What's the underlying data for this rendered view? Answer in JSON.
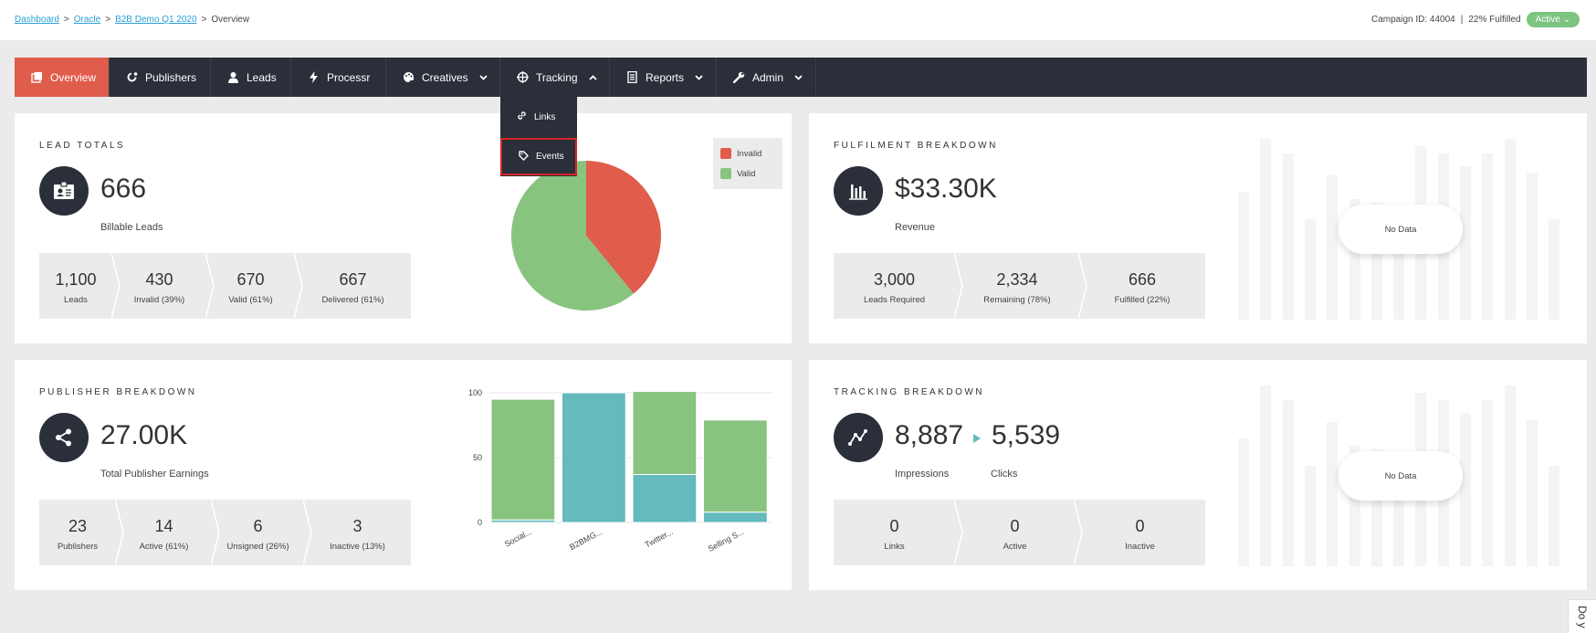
{
  "breadcrumb": {
    "items": [
      "Dashboard",
      "Oracle",
      "B2B Demo Q1 2020"
    ],
    "current": "Overview",
    "separator": ">"
  },
  "campaign": {
    "id_text": "Campaign ID: 44004",
    "divider": "|",
    "fulfilled_text": "22% Fulfilled",
    "status": "Active"
  },
  "nav": {
    "items": [
      {
        "label": "Overview",
        "icon": "overview-icon"
      },
      {
        "label": "Publishers",
        "icon": "publishers-icon"
      },
      {
        "label": "Leads",
        "icon": "person-icon"
      },
      {
        "label": "Processr",
        "icon": "bolt-icon"
      },
      {
        "label": "Creatives",
        "icon": "palette-icon"
      },
      {
        "label": "Tracking",
        "icon": "crosshair-icon"
      },
      {
        "label": "Reports",
        "icon": "document-icon"
      },
      {
        "label": "Admin",
        "icon": "wrench-icon"
      }
    ]
  },
  "tracking_dropdown": {
    "items": [
      {
        "label": "Links",
        "icon": "link-icon"
      },
      {
        "label": "Events",
        "icon": "tag-icon"
      }
    ]
  },
  "lead_totals": {
    "title": "LEAD TOTALS",
    "value": "666",
    "caption": "Billable Leads",
    "stats": [
      {
        "value": "1,100",
        "label": "Leads"
      },
      {
        "value": "430",
        "label": "Invalid (39%)"
      },
      {
        "value": "670",
        "label": "Valid (61%)"
      },
      {
        "value": "667",
        "label": "Delivered (61%)"
      }
    ],
    "legend": [
      {
        "label": "Invalid",
        "color": "#e05c4b"
      },
      {
        "label": "Valid",
        "color": "#88c47f"
      }
    ]
  },
  "fulfilment": {
    "title": "FULFILMENT BREAKDOWN",
    "value": "$33.30K",
    "caption": "Revenue",
    "stats": [
      {
        "value": "3,000",
        "label": "Leads Required"
      },
      {
        "value": "2,334",
        "label": "Remaining (78%)"
      },
      {
        "value": "666",
        "label": "Fulfilled (22%)"
      }
    ],
    "no_data": "No Data"
  },
  "publisher": {
    "title": "PUBLISHER BREAKDOWN",
    "value": "27.00K",
    "caption": "Total Publisher Earnings",
    "stats": [
      {
        "value": "23",
        "label": "Publishers"
      },
      {
        "value": "14",
        "label": "Active (61%)"
      },
      {
        "value": "6",
        "label": "Unsigned (26%)"
      },
      {
        "value": "3",
        "label": "Inactive (13%)"
      }
    ]
  },
  "tracking": {
    "title": "TRACKING BREAKDOWN",
    "impressions": "8,887",
    "clicks": "5,539",
    "impressions_label": "Impressions",
    "clicks_label": "Clicks",
    "stats": [
      {
        "value": "0",
        "label": "Links"
      },
      {
        "value": "0",
        "label": "Active"
      },
      {
        "value": "0",
        "label": "Inactive"
      }
    ],
    "no_data": "No Data"
  },
  "side_tab": "Do y",
  "colors": {
    "accent": "#e05c4b",
    "nav_bg": "#2a2f3a",
    "valid": "#88c47f",
    "teal": "#64babc",
    "status": "#7cc47f"
  },
  "chart_data": [
    {
      "type": "pie",
      "labels": [
        "Invalid",
        "Valid"
      ],
      "values": [
        430,
        670
      ],
      "colors": [
        "#e05c4b",
        "#88c47f"
      ],
      "legend": "top-right"
    },
    {
      "type": "bar",
      "stacked": true,
      "categories": [
        "Social...",
        "B2BMG...",
        "Twitter...",
        "Selling S..."
      ],
      "series": [
        {
          "color": "#64babc",
          "values": [
            2,
            100,
            37,
            8
          ]
        },
        {
          "color": "#88c47f",
          "values": [
            93,
            0,
            64,
            71
          ]
        }
      ],
      "ylim": [
        0,
        100
      ],
      "yticks": [
        0,
        50,
        100
      ],
      "grid": true
    }
  ]
}
